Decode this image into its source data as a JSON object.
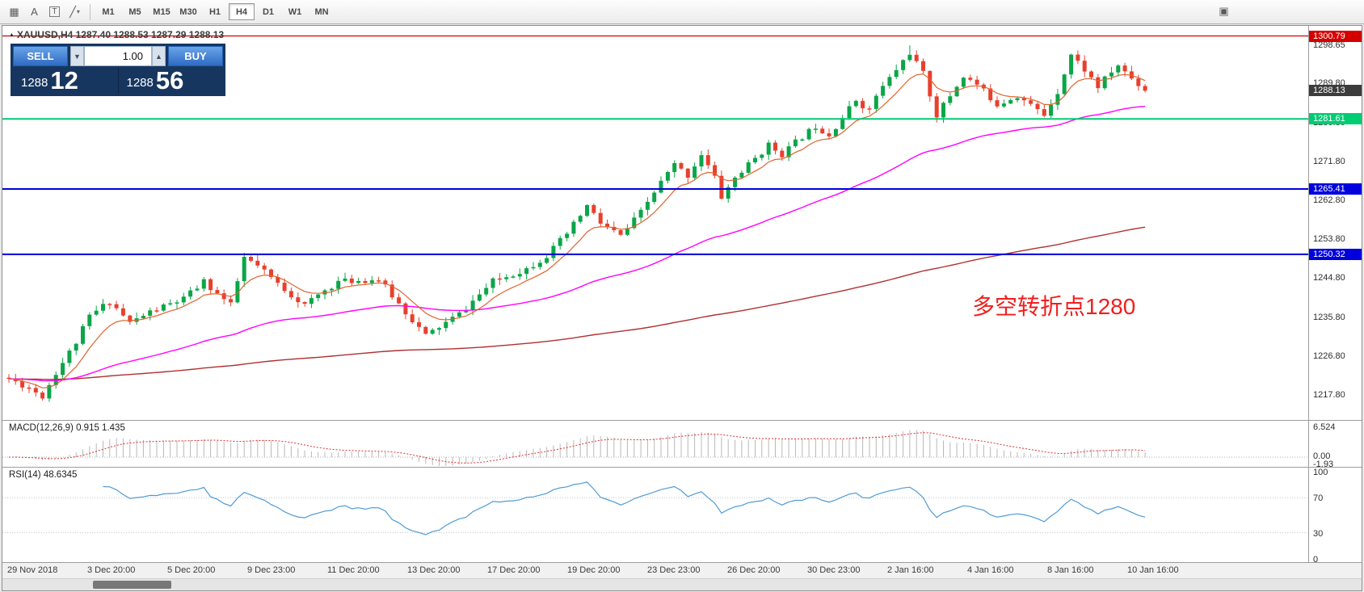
{
  "colors": {
    "up": "#0aa648",
    "down": "#e8402e",
    "ma_fast": "#e0632e",
    "ma_mid": "#ff00ff",
    "ma_slow": "#b03030",
    "line_red": "#d40000",
    "line_green": "#00cc74",
    "line_blue": "#0000dd",
    "tag_current": "#3c3c3c",
    "macd_hist": "#b8b8b8",
    "macd_signal": "#e03030",
    "rsi": "#4f9bd5",
    "annotation": "#f21d1d",
    "panel_navy": "#17365f",
    "button_blue": "#3a7bd5"
  },
  "toolbar": {
    "icons": [
      "templates-icon",
      "text-label-icon",
      "text-box-icon",
      "shapes-dropdown-icon",
      "chart-window-icon"
    ],
    "timeframes": [
      {
        "label": "M1",
        "active": false
      },
      {
        "label": "M5",
        "active": false
      },
      {
        "label": "M15",
        "active": false
      },
      {
        "label": "M30",
        "active": false
      },
      {
        "label": "H1",
        "active": false
      },
      {
        "label": "H4",
        "active": true
      },
      {
        "label": "D1",
        "active": false
      },
      {
        "label": "W1",
        "active": false
      },
      {
        "label": "MN",
        "active": false
      }
    ]
  },
  "trade_panel": {
    "sell_label": "SELL",
    "buy_label": "BUY",
    "volume": "1.00",
    "sell_big": "1288",
    "sell_sup": "12",
    "buy_big": "1288",
    "buy_sup": "56"
  },
  "chart": {
    "title": "XAUUSD,H4 1287.40 1288.53 1287.29 1288.13",
    "annotation": "多空转折点1280",
    "price_ticks": [
      "1298.65",
      "1289.80",
      "1280.80",
      "1271.80",
      "1262.80",
      "1253.80",
      "1244.80",
      "1235.80",
      "1226.80",
      "1217.80"
    ],
    "tags": [
      {
        "text": "1300.79",
        "price": 1300.79,
        "type": "red"
      },
      {
        "text": "1288.13",
        "price": 1288.13,
        "type": "current"
      },
      {
        "text": "1281.61",
        "price": 1281.61,
        "type": "green"
      },
      {
        "text": "1265.41",
        "price": 1265.41,
        "type": "blue"
      },
      {
        "text": "1250.32",
        "price": 1250.32,
        "type": "blue"
      }
    ],
    "time_labels": [
      "29 Nov 2018",
      "3 Dec 20:00",
      "5 Dec 20:00",
      "9 Dec 23:00",
      "11 Dec 20:00",
      "13 Dec 20:00",
      "17 Dec 20:00",
      "19 Dec 20:00",
      "23 Dec 23:00",
      "26 Dec 20:00",
      "30 Dec 23:00",
      "2 Jan 16:00",
      "4 Jan 16:00",
      "8 Jan 16:00",
      "10 Jan 16:00"
    ]
  },
  "macd": {
    "label": "MACD(12,26,9) 0.915 1.435",
    "scale": [
      "6.524",
      "0.00",
      "-1.93"
    ]
  },
  "rsi": {
    "label": "RSI(14) 48.6345",
    "scale": [
      100,
      70,
      30,
      0
    ],
    "levels": [
      70,
      30
    ]
  },
  "chart_data": {
    "type": "candlestick",
    "symbol": "XAUUSD",
    "timeframe": "H4",
    "last_ohlc": "1287.40 1288.53 1287.29 1288.13",
    "candle_count": 170,
    "seed": 11,
    "y_axis": {
      "top_price": 1302,
      "bottom_price": 1218
    },
    "levels": {
      "red": 1300.79,
      "green": 1281.61,
      "blue1": 1265.41,
      "blue2": 1250.32,
      "current": 1288.13
    },
    "anchors": [
      [
        0,
        1221.5
      ],
      [
        3,
        1219.5
      ],
      [
        5,
        1217.5
      ],
      [
        7,
        1223
      ],
      [
        10,
        1230
      ],
      [
        12,
        1236
      ],
      [
        15,
        1239.5
      ],
      [
        18,
        1234.5
      ],
      [
        21,
        1237
      ],
      [
        26,
        1240
      ],
      [
        29,
        1244
      ],
      [
        33,
        1238.5
      ],
      [
        35,
        1249.5
      ],
      [
        37,
        1247.5
      ],
      [
        40,
        1243.5
      ],
      [
        44,
        1238.5
      ],
      [
        47,
        1242
      ],
      [
        49,
        1244
      ],
      [
        55,
        1244.5
      ],
      [
        59,
        1237
      ],
      [
        62,
        1231.5
      ],
      [
        67,
        1236.5
      ],
      [
        72,
        1244
      ],
      [
        77,
        1247
      ],
      [
        80,
        1250
      ],
      [
        83,
        1255
      ],
      [
        86,
        1261.5
      ],
      [
        88,
        1257.5
      ],
      [
        91,
        1254.5
      ],
      [
        94,
        1260
      ],
      [
        97,
        1267
      ],
      [
        99,
        1271
      ],
      [
        101,
        1268.5
      ],
      [
        103,
        1273.5
      ],
      [
        105,
        1268
      ],
      [
        106,
        1263.5
      ],
      [
        108,
        1268
      ],
      [
        111,
        1272.5
      ],
      [
        113,
        1275.5
      ],
      [
        115,
        1273.5
      ],
      [
        118,
        1277.5
      ],
      [
        120,
        1280
      ],
      [
        122,
        1278
      ],
      [
        124,
        1282
      ],
      [
        126,
        1286
      ],
      [
        128,
        1283.5
      ],
      [
        129,
        1287
      ],
      [
        131,
        1291
      ],
      [
        134,
        1297
      ],
      [
        136,
        1292
      ],
      [
        138,
        1282.5
      ],
      [
        140,
        1287
      ],
      [
        142,
        1291.5
      ],
      [
        144,
        1289.5
      ],
      [
        147,
        1285
      ],
      [
        150,
        1287
      ],
      [
        154,
        1282.5
      ],
      [
        156,
        1288
      ],
      [
        158,
        1296.5
      ],
      [
        160,
        1293
      ],
      [
        162,
        1289
      ],
      [
        164,
        1292.5
      ],
      [
        165,
        1294
      ],
      [
        167,
        1291
      ],
      [
        169,
        1288.2
      ]
    ],
    "ma_periods": {
      "fast": 8,
      "mid": 55,
      "slow": 240
    },
    "macd_params": [
      12,
      26,
      9
    ],
    "rsi_period": 14
  }
}
